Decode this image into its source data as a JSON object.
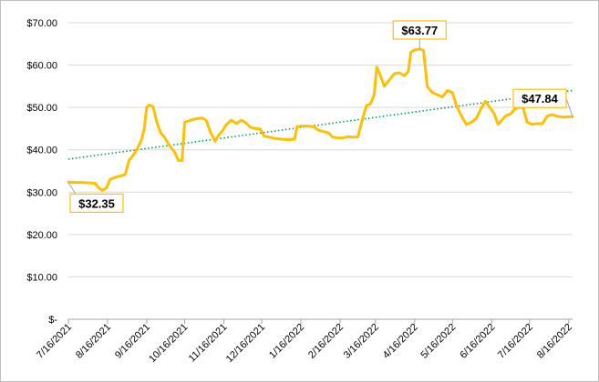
{
  "chart_data": {
    "type": "line",
    "title": "",
    "xlabel": "",
    "ylabel": "",
    "ylim": [
      0,
      70
    ],
    "y_ticks": [
      {
        "value": 0,
        "label": "$-"
      },
      {
        "value": 10,
        "label": "$10.00"
      },
      {
        "value": 20,
        "label": "$20.00"
      },
      {
        "value": 30,
        "label": "$30.00"
      },
      {
        "value": 40,
        "label": "$40.00"
      },
      {
        "value": 50,
        "label": "$50.00"
      },
      {
        "value": 60,
        "label": "$60.00"
      },
      {
        "value": 70,
        "label": "$70.00"
      }
    ],
    "x_ticks": [
      "7/16/2021",
      "8/16/2021",
      "9/16/2021",
      "10/16/2021",
      "11/16/2021",
      "12/16/2021",
      "1/16/2022",
      "2/16/2022",
      "3/16/2022",
      "4/16/2022",
      "5/16/2022",
      "6/16/2022",
      "7/16/2022",
      "8/16/2022"
    ],
    "x_start": "2021-07-16",
    "x_end": "2022-08-19",
    "grid": {
      "horizontal": true,
      "vertical": false,
      "color": "#d9d9d9"
    },
    "series": [
      {
        "type": "line",
        "color": "#ffc000",
        "points": [
          [
            "2021-07-16",
            32.4
          ],
          [
            "2021-07-20",
            32.3
          ],
          [
            "2021-07-26",
            32.3
          ],
          [
            "2021-08-01",
            32.2
          ],
          [
            "2021-08-06",
            32.1
          ],
          [
            "2021-08-09",
            31.0
          ],
          [
            "2021-08-12",
            30.4
          ],
          [
            "2021-08-15",
            31.0
          ],
          [
            "2021-08-18",
            33.0
          ],
          [
            "2021-08-22",
            33.5
          ],
          [
            "2021-08-26",
            33.8
          ],
          [
            "2021-08-30",
            34.2
          ],
          [
            "2021-09-02",
            37.5
          ],
          [
            "2021-09-06",
            39.0
          ],
          [
            "2021-09-09",
            40.5
          ],
          [
            "2021-09-12",
            42.5
          ],
          [
            "2021-09-14",
            45.0
          ],
          [
            "2021-09-16",
            50.0
          ],
          [
            "2021-09-18",
            50.6
          ],
          [
            "2021-09-21",
            50.2
          ],
          [
            "2021-09-24",
            46.5
          ],
          [
            "2021-09-27",
            44.0
          ],
          [
            "2021-09-30",
            43.0
          ],
          [
            "2021-10-04",
            41.0
          ],
          [
            "2021-10-08",
            39.5
          ],
          [
            "2021-10-11",
            37.5
          ],
          [
            "2021-10-14",
            37.5
          ],
          [
            "2021-10-16",
            46.5
          ],
          [
            "2021-10-19",
            46.8
          ],
          [
            "2021-10-22",
            47.1
          ],
          [
            "2021-10-26",
            47.4
          ],
          [
            "2021-10-30",
            47.5
          ],
          [
            "2021-11-02",
            47.0
          ],
          [
            "2021-11-05",
            44.5
          ],
          [
            "2021-11-09",
            42.0
          ],
          [
            "2021-11-12",
            43.5
          ],
          [
            "2021-11-15",
            44.5
          ],
          [
            "2021-11-18",
            46.0
          ],
          [
            "2021-11-22",
            47.0
          ],
          [
            "2021-11-26",
            46.2
          ],
          [
            "2021-11-30",
            47.0
          ],
          [
            "2021-12-03",
            46.5
          ],
          [
            "2021-12-07",
            45.3
          ],
          [
            "2021-12-11",
            45.0
          ],
          [
            "2021-12-15",
            44.9
          ],
          [
            "2021-12-18",
            43.2
          ],
          [
            "2021-12-22",
            43.0
          ],
          [
            "2021-12-26",
            42.7
          ],
          [
            "2022-01-01",
            42.5
          ],
          [
            "2022-01-07",
            42.4
          ],
          [
            "2022-01-11",
            42.5
          ],
          [
            "2022-01-13",
            45.5
          ],
          [
            "2022-01-16",
            45.6
          ],
          [
            "2022-01-21",
            45.6
          ],
          [
            "2022-01-26",
            45.5
          ],
          [
            "2022-01-30",
            44.6
          ],
          [
            "2022-02-03",
            44.3
          ],
          [
            "2022-02-07",
            44.0
          ],
          [
            "2022-02-10",
            43.0
          ],
          [
            "2022-02-15",
            42.8
          ],
          [
            "2022-02-18",
            42.8
          ],
          [
            "2022-02-22",
            43.1
          ],
          [
            "2022-02-26",
            43.0
          ],
          [
            "2022-03-02",
            43.0
          ],
          [
            "2022-03-06",
            47.5
          ],
          [
            "2022-03-09",
            50.5
          ],
          [
            "2022-03-12",
            50.8
          ],
          [
            "2022-03-15",
            53.0
          ],
          [
            "2022-03-17",
            59.5
          ],
          [
            "2022-03-20",
            57.5
          ],
          [
            "2022-03-23",
            55.0
          ],
          [
            "2022-03-27",
            56.5
          ],
          [
            "2022-03-31",
            58.0
          ],
          [
            "2022-04-04",
            58.2
          ],
          [
            "2022-04-08",
            57.5
          ],
          [
            "2022-04-11",
            58.5
          ],
          [
            "2022-04-13",
            63.0
          ],
          [
            "2022-04-16",
            63.6
          ],
          [
            "2022-04-20",
            63.8
          ],
          [
            "2022-04-23",
            63.5
          ],
          [
            "2022-04-26",
            55.0
          ],
          [
            "2022-04-30",
            53.5
          ],
          [
            "2022-05-04",
            53.0
          ],
          [
            "2022-05-08",
            52.5
          ],
          [
            "2022-05-12",
            54.0
          ],
          [
            "2022-05-16",
            53.5
          ],
          [
            "2022-05-19",
            50.5
          ],
          [
            "2022-05-23",
            48.0
          ],
          [
            "2022-05-27",
            46.0
          ],
          [
            "2022-05-31",
            46.5
          ],
          [
            "2022-06-04",
            47.5
          ],
          [
            "2022-06-08",
            50.0
          ],
          [
            "2022-06-11",
            51.5
          ],
          [
            "2022-06-14",
            50.2
          ],
          [
            "2022-06-18",
            48.5
          ],
          [
            "2022-06-21",
            46.0
          ],
          [
            "2022-06-24",
            47.0
          ],
          [
            "2022-06-27",
            48.0
          ],
          [
            "2022-07-01",
            48.5
          ],
          [
            "2022-07-04",
            49.5
          ],
          [
            "2022-07-08",
            50.2
          ],
          [
            "2022-07-11",
            49.8
          ],
          [
            "2022-07-14",
            46.5
          ],
          [
            "2022-07-18",
            46.0
          ],
          [
            "2022-07-22",
            46.2
          ],
          [
            "2022-07-26",
            46.1
          ],
          [
            "2022-07-30",
            48.0
          ],
          [
            "2022-08-03",
            48.3
          ],
          [
            "2022-08-07",
            47.9
          ],
          [
            "2022-08-12",
            47.7
          ],
          [
            "2022-08-16",
            47.8
          ],
          [
            "2022-08-19",
            47.8
          ]
        ]
      },
      {
        "type": "trendline",
        "style": "dotted",
        "color": "#00a050",
        "points": [
          [
            "2021-07-16",
            37.8
          ],
          [
            "2022-08-19",
            54.0
          ]
        ]
      }
    ],
    "annotations": [
      {
        "text": "$32.35",
        "date": "2021-07-16",
        "value": 32.35,
        "placement": "below-right"
      },
      {
        "text": "$63.77",
        "date": "2022-04-20",
        "value": 63.77,
        "placement": "above"
      },
      {
        "text": "$47.84",
        "date": "2022-08-19",
        "value": 47.84,
        "placement": "above-left"
      }
    ]
  }
}
